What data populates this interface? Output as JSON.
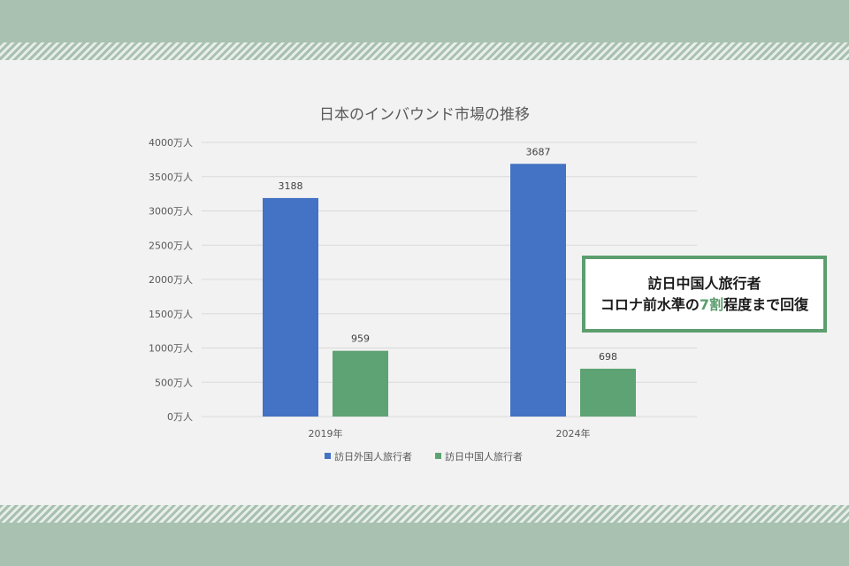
{
  "chart_data": {
    "type": "bar",
    "title": "日本のインバウンド市場の推移",
    "categories": [
      "2019年",
      "2024年"
    ],
    "series": [
      {
        "name": "訪日外国人旅行者",
        "values": [
          3188,
          3687
        ],
        "color": "#4472c4"
      },
      {
        "name": "訪日中国人旅行者",
        "values": [
          959,
          698
        ],
        "color": "#5ea373"
      }
    ],
    "ylim": [
      0,
      4000
    ],
    "yticks": [
      0,
      500,
      1000,
      1500,
      2000,
      2500,
      3000,
      3500,
      4000
    ],
    "ytick_labels": [
      "0万人",
      "500万人",
      "1000万人",
      "1500万人",
      "2000万人",
      "2500万人",
      "3000万人",
      "3500万人",
      "4000万人"
    ],
    "grid": true,
    "legend_position": "bottom"
  },
  "callout": {
    "line1": "訪日中国人旅行者",
    "line2_before": "コロナ前水準の",
    "line2_accent": "7割",
    "line2_after": "程度まで回復",
    "accent_color": "#5c9e6e"
  }
}
